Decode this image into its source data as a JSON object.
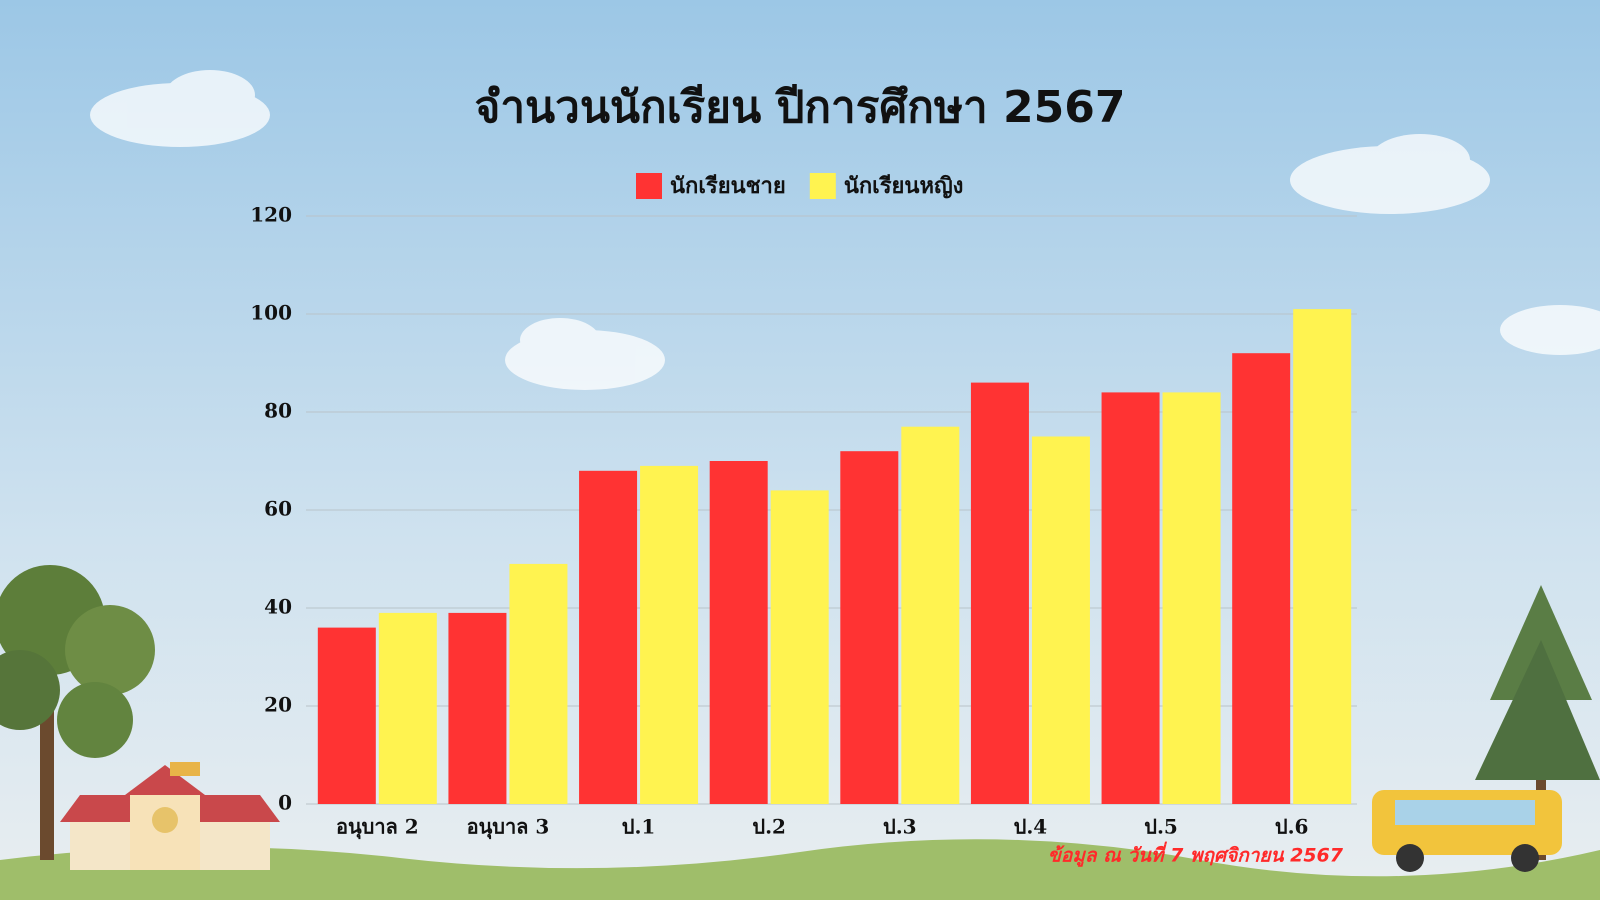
{
  "chart_data": {
    "type": "bar",
    "title": "จำนวนนักเรียน ปีการศึกษา 2567",
    "categories": [
      "อนุบาล 2",
      "อนุบาล 3",
      "ป.1",
      "ป.2",
      "ป.3",
      "ป.4",
      "ป.5",
      "ป.6"
    ],
    "series": [
      {
        "name": "นักเรียนชาย",
        "color": "#ff3333",
        "values": [
          36,
          39,
          68,
          70,
          72,
          86,
          84,
          92
        ]
      },
      {
        "name": "นักเรียนหญิง",
        "color": "#fff350",
        "values": [
          39,
          49,
          69,
          64,
          77,
          75,
          84,
          101
        ]
      }
    ],
    "ylim": [
      0,
      120
    ],
    "yticks": [
      0,
      20,
      40,
      60,
      80,
      100,
      120
    ],
    "grid": true,
    "legend": "top",
    "annotation": "ข้อมูล ณ วันที่ 7 พฤศจิกายน 2567"
  }
}
